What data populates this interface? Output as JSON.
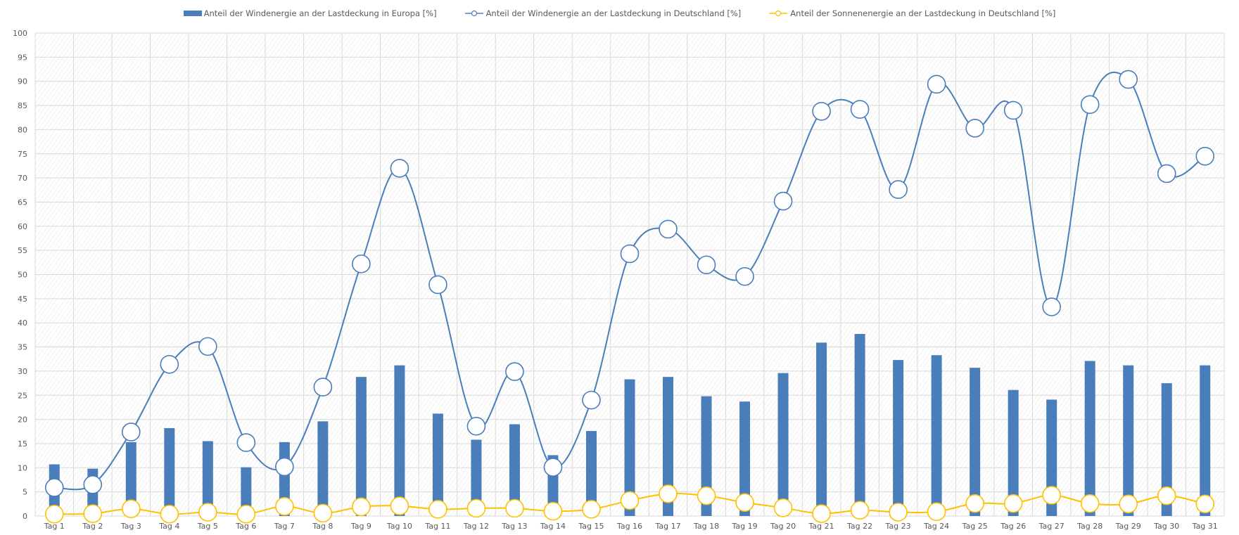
{
  "chart_data": {
    "type": "bar",
    "title": "",
    "xlabel": "",
    "ylabel": "",
    "ylim": [
      0,
      100
    ],
    "yticks": [
      0,
      5,
      10,
      15,
      20,
      25,
      30,
      35,
      40,
      45,
      50,
      55,
      60,
      65,
      70,
      75,
      80,
      85,
      90,
      95,
      100
    ],
    "grid": true,
    "legend_position": "top",
    "categories": [
      "Tag 1",
      "Tag 2",
      "Tag 3",
      "Tag 4",
      "Tag 5",
      "Tag 6",
      "Tag 7",
      "Tag 8",
      "Tag 9",
      "Tag 10",
      "Tag 11",
      "Tag 12",
      "Tag 13",
      "Tag 14",
      "Tag 15",
      "Tag 16",
      "Tag 17",
      "Tag 18",
      "Tag 19",
      "Tag 20",
      "Tag 21",
      "Tag 22",
      "Tag 23",
      "Tag 24",
      "Tag 25",
      "Tag 26",
      "Tag 27",
      "Tag 28",
      "Tag 29",
      "Tag 30",
      "Tag 31"
    ],
    "series": [
      {
        "name": "Anteil der Windenergie an der Lastdeckung in Europa [%]",
        "type": "bar",
        "color": "#4a7ebb",
        "values": [
          10.7,
          9.8,
          15.3,
          18.2,
          15.5,
          10.1,
          15.3,
          19.6,
          28.8,
          31.2,
          21.2,
          15.8,
          19.0,
          12.6,
          17.6,
          28.3,
          28.8,
          24.8,
          23.7,
          29.6,
          35.9,
          37.7,
          32.3,
          33.3,
          30.7,
          26.1,
          24.1,
          32.1,
          31.2,
          27.5,
          31.2
        ]
      },
      {
        "name": "Anteil der Windenergie an der Lastdeckung in Deutschland [%]",
        "type": "line",
        "color": "#4a7ebb",
        "values": [
          5.9,
          6.5,
          17.4,
          31.4,
          35.1,
          15.2,
          10.2,
          26.7,
          52.2,
          72.0,
          47.9,
          18.6,
          29.9,
          10.1,
          24.0,
          54.3,
          59.4,
          52.0,
          49.6,
          65.2,
          83.8,
          84.2,
          67.6,
          89.4,
          80.3,
          84.0,
          43.3,
          85.2,
          90.4,
          70.9,
          74.5
        ]
      },
      {
        "name": "Anteil der Sonnenenergie an der Lastdeckung in Deutschland [%]",
        "type": "line",
        "color": "#ffc000",
        "values": [
          0.4,
          0.5,
          1.5,
          0.4,
          0.8,
          0.4,
          2.0,
          0.6,
          1.9,
          2.1,
          1.4,
          1.6,
          1.6,
          1.0,
          1.4,
          3.2,
          4.6,
          4.2,
          2.8,
          1.7,
          0.5,
          1.2,
          0.8,
          0.9,
          2.6,
          2.6,
          4.3,
          2.6,
          2.5,
          4.2,
          2.5
        ]
      }
    ]
  }
}
